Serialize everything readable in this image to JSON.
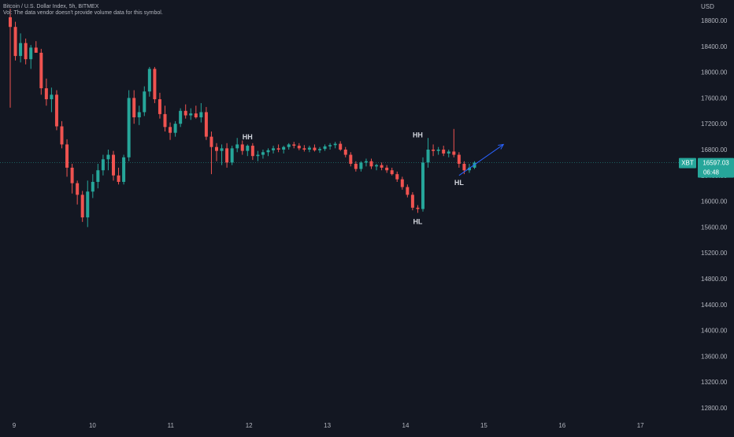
{
  "header": {
    "symbol_title": "Bitcoin / U.S. Dollar Index, 5h, BITMEX",
    "vol_notice": "Vol: The data vendor doesn't provide volume data for this symbol."
  },
  "colors": {
    "background": "#131722",
    "up": "#26a69a",
    "down": "#ef5350",
    "axis_text": "#b2b5be",
    "annotation": "#d1d4dc",
    "arrow": "#2962ff",
    "price_line": "#26a69a"
  },
  "chart_data": {
    "type": "candlestick",
    "currency_label": "USD",
    "y_ticks": [
      18800,
      18400,
      18000,
      17600,
      17200,
      16800,
      16400,
      16000,
      15600,
      15200,
      14800,
      14400,
      14000,
      13600,
      13200,
      12800
    ],
    "y_tick_labels": [
      "18800.00",
      "18400.00",
      "18000.00",
      "17600.00",
      "17200.00",
      "16800.00",
      "16400.00",
      "16000.00",
      "15600.00",
      "15200.00",
      "14800.00",
      "14400.00",
      "14000.00",
      "13600.00",
      "13200.00",
      "12800.00"
    ],
    "x_ticks": [
      "9",
      "10",
      "11",
      "12",
      "13",
      "14",
      "15",
      "16",
      "17"
    ],
    "last_price": {
      "symbol": "XBT",
      "value": 16597.03,
      "label": "16597.03",
      "countdown": "06:48"
    },
    "candles": [
      {
        "o": 18850,
        "h": 18980,
        "l": 17450,
        "c": 18700
      },
      {
        "o": 18700,
        "h": 18780,
        "l": 18180,
        "c": 18250
      },
      {
        "o": 18250,
        "h": 18600,
        "l": 18150,
        "c": 18450
      },
      {
        "o": 18450,
        "h": 18520,
        "l": 18120,
        "c": 18200
      },
      {
        "o": 18200,
        "h": 18420,
        "l": 18050,
        "c": 18380
      },
      {
        "o": 18380,
        "h": 18480,
        "l": 18320,
        "c": 18300
      },
      {
        "o": 18300,
        "h": 18360,
        "l": 17650,
        "c": 17750
      },
      {
        "o": 17750,
        "h": 17900,
        "l": 17480,
        "c": 17580
      },
      {
        "o": 17580,
        "h": 17760,
        "l": 17380,
        "c": 17650
      },
      {
        "o": 17650,
        "h": 17720,
        "l": 17100,
        "c": 17160
      },
      {
        "o": 17160,
        "h": 17240,
        "l": 16820,
        "c": 16880
      },
      {
        "o": 16880,
        "h": 16960,
        "l": 16380,
        "c": 16520
      },
      {
        "o": 16520,
        "h": 16580,
        "l": 16120,
        "c": 16280
      },
      {
        "o": 16280,
        "h": 16320,
        "l": 15950,
        "c": 16100
      },
      {
        "o": 16100,
        "h": 16160,
        "l": 15680,
        "c": 15750
      },
      {
        "o": 15750,
        "h": 16320,
        "l": 15600,
        "c": 16150
      },
      {
        "o": 16150,
        "h": 16420,
        "l": 16050,
        "c": 16300
      },
      {
        "o": 16300,
        "h": 16580,
        "l": 16200,
        "c": 16480
      },
      {
        "o": 16480,
        "h": 16720,
        "l": 16400,
        "c": 16650
      },
      {
        "o": 16650,
        "h": 16800,
        "l": 16480,
        "c": 16720
      },
      {
        "o": 16720,
        "h": 16780,
        "l": 16320,
        "c": 16400
      },
      {
        "o": 16400,
        "h": 16520,
        "l": 16260,
        "c": 16300
      },
      {
        "o": 16300,
        "h": 16720,
        "l": 16260,
        "c": 16680
      },
      {
        "o": 16680,
        "h": 17720,
        "l": 16620,
        "c": 17600
      },
      {
        "o": 17600,
        "h": 17720,
        "l": 17200,
        "c": 17300
      },
      {
        "o": 17300,
        "h": 17480,
        "l": 17180,
        "c": 17380
      },
      {
        "o": 17380,
        "h": 17780,
        "l": 17320,
        "c": 17700
      },
      {
        "o": 17700,
        "h": 18080,
        "l": 17620,
        "c": 18050
      },
      {
        "o": 18050,
        "h": 18080,
        "l": 17520,
        "c": 17580
      },
      {
        "o": 17580,
        "h": 17680,
        "l": 17280,
        "c": 17350
      },
      {
        "o": 17350,
        "h": 17480,
        "l": 17080,
        "c": 17150
      },
      {
        "o": 17150,
        "h": 17220,
        "l": 16950,
        "c": 17060
      },
      {
        "o": 17060,
        "h": 17240,
        "l": 17000,
        "c": 17200
      },
      {
        "o": 17200,
        "h": 17440,
        "l": 17150,
        "c": 17400
      },
      {
        "o": 17400,
        "h": 17500,
        "l": 17280,
        "c": 17330
      },
      {
        "o": 17330,
        "h": 17440,
        "l": 17260,
        "c": 17360
      },
      {
        "o": 17360,
        "h": 17480,
        "l": 17280,
        "c": 17300
      },
      {
        "o": 17300,
        "h": 17520,
        "l": 17220,
        "c": 17380
      },
      {
        "o": 17380,
        "h": 17460,
        "l": 16950,
        "c": 17000
      },
      {
        "o": 17000,
        "h": 17080,
        "l": 16420,
        "c": 16840
      },
      {
        "o": 16840,
        "h": 16900,
        "l": 16620,
        "c": 16780
      },
      {
        "o": 16780,
        "h": 16880,
        "l": 16560,
        "c": 16820
      },
      {
        "o": 16820,
        "h": 16900,
        "l": 16520,
        "c": 16600
      },
      {
        "o": 16600,
        "h": 16860,
        "l": 16560,
        "c": 16820
      },
      {
        "o": 16820,
        "h": 16980,
        "l": 16760,
        "c": 16880
      },
      {
        "o": 16880,
        "h": 16940,
        "l": 16720,
        "c": 16780
      },
      {
        "o": 16780,
        "h": 16880,
        "l": 16700,
        "c": 16860
      },
      {
        "o": 16860,
        "h": 16900,
        "l": 16640,
        "c": 16700
      },
      {
        "o": 16700,
        "h": 16780,
        "l": 16620,
        "c": 16720
      },
      {
        "o": 16720,
        "h": 16800,
        "l": 16660,
        "c": 16760
      },
      {
        "o": 16760,
        "h": 16820,
        "l": 16700,
        "c": 16790
      },
      {
        "o": 16790,
        "h": 16860,
        "l": 16740,
        "c": 16820
      },
      {
        "o": 16820,
        "h": 16880,
        "l": 16760,
        "c": 16800
      },
      {
        "o": 16800,
        "h": 16860,
        "l": 16740,
        "c": 16840
      },
      {
        "o": 16840,
        "h": 16900,
        "l": 16800,
        "c": 16880
      },
      {
        "o": 16880,
        "h": 16920,
        "l": 16820,
        "c": 16860
      },
      {
        "o": 16860,
        "h": 16900,
        "l": 16790,
        "c": 16820
      },
      {
        "o": 16820,
        "h": 16870,
        "l": 16770,
        "c": 16800
      },
      {
        "o": 16800,
        "h": 16860,
        "l": 16760,
        "c": 16830
      },
      {
        "o": 16830,
        "h": 16880,
        "l": 16770,
        "c": 16790
      },
      {
        "o": 16790,
        "h": 16840,
        "l": 16750,
        "c": 16810
      },
      {
        "o": 16810,
        "h": 16880,
        "l": 16780,
        "c": 16850
      },
      {
        "o": 16850,
        "h": 16900,
        "l": 16800,
        "c": 16870
      },
      {
        "o": 16870,
        "h": 16920,
        "l": 16820,
        "c": 16890
      },
      {
        "o": 16890,
        "h": 16930,
        "l": 16780,
        "c": 16800
      },
      {
        "o": 16800,
        "h": 16840,
        "l": 16680,
        "c": 16720
      },
      {
        "o": 16720,
        "h": 16760,
        "l": 16540,
        "c": 16580
      },
      {
        "o": 16580,
        "h": 16620,
        "l": 16460,
        "c": 16500
      },
      {
        "o": 16500,
        "h": 16620,
        "l": 16460,
        "c": 16600
      },
      {
        "o": 16600,
        "h": 16660,
        "l": 16540,
        "c": 16620
      },
      {
        "o": 16620,
        "h": 16660,
        "l": 16500,
        "c": 16540
      },
      {
        "o": 16540,
        "h": 16580,
        "l": 16480,
        "c": 16560
      },
      {
        "o": 16560,
        "h": 16600,
        "l": 16480,
        "c": 16520
      },
      {
        "o": 16520,
        "h": 16560,
        "l": 16440,
        "c": 16480
      },
      {
        "o": 16480,
        "h": 16520,
        "l": 16400,
        "c": 16420
      },
      {
        "o": 16420,
        "h": 16460,
        "l": 16300,
        "c": 16340
      },
      {
        "o": 16340,
        "h": 16380,
        "l": 16180,
        "c": 16220
      },
      {
        "o": 16220,
        "h": 16260,
        "l": 16060,
        "c": 16100
      },
      {
        "o": 16100,
        "h": 16140,
        "l": 15860,
        "c": 15900
      },
      {
        "o": 15900,
        "h": 15940,
        "l": 15820,
        "c": 15880
      },
      {
        "o": 15880,
        "h": 16680,
        "l": 15840,
        "c": 16600
      },
      {
        "o": 16600,
        "h": 16980,
        "l": 16520,
        "c": 16800
      },
      {
        "o": 16800,
        "h": 16880,
        "l": 16700,
        "c": 16780
      },
      {
        "o": 16780,
        "h": 16840,
        "l": 16720,
        "c": 16800
      },
      {
        "o": 16800,
        "h": 16860,
        "l": 16700,
        "c": 16740
      },
      {
        "o": 16740,
        "h": 16800,
        "l": 16680,
        "c": 16770
      },
      {
        "o": 16770,
        "h": 17120,
        "l": 16680,
        "c": 16720
      },
      {
        "o": 16720,
        "h": 16760,
        "l": 16520,
        "c": 16580
      },
      {
        "o": 16580,
        "h": 16620,
        "l": 16420,
        "c": 16480
      },
      {
        "o": 16480,
        "h": 16580,
        "l": 16440,
        "c": 16520
      },
      {
        "o": 16520,
        "h": 16620,
        "l": 16500,
        "c": 16597
      }
    ],
    "annotations": [
      {
        "text": "HH",
        "x_index": 46,
        "price": 16960
      },
      {
        "text": "HH",
        "x_index": 79,
        "price": 16990
      },
      {
        "text": "HL",
        "x_index": 79,
        "price": 15650
      },
      {
        "text": "HL",
        "x_index": 87,
        "price": 16250
      }
    ],
    "trend_arrow": {
      "from_index": 87,
      "from_price": 16400,
      "to_index": 95,
      "to_price": 16880
    }
  }
}
